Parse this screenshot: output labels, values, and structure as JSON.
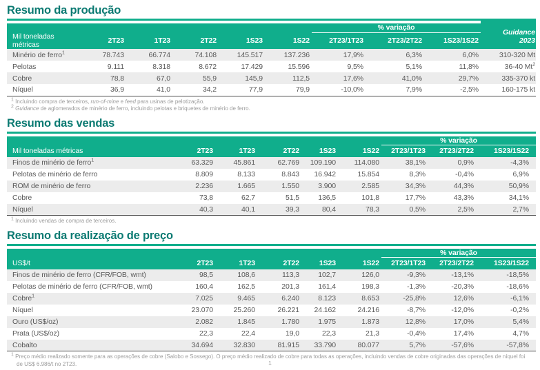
{
  "page": {
    "number": "1"
  },
  "colors": {
    "accent_green": "#10AE8C",
    "title_teal": "#0B7A72",
    "row_stripe": "#ECECEC",
    "body_text": "#595959",
    "footnote_text": "#9C9C9C",
    "header_text": "#FFFFFF"
  },
  "sections": [
    {
      "title": "Resumo da produção",
      "unit_header": "Mil toneladas métricas",
      "period_columns": [
        "2T23",
        "1T23",
        "2T22",
        "1S23",
        "1S22"
      ],
      "variation_group_label": "% variação",
      "variation_columns": [
        "2T23/1T23",
        "2T23/2T22",
        "1S23/1S22"
      ],
      "guidance_column": {
        "line1": "Guidance",
        "line2": "2023"
      },
      "rows": [
        {
          "label": "Minério de ferro",
          "label_sup": "1",
          "periods": [
            "78.743",
            "66.774",
            "74.108",
            "145.517",
            "137.236"
          ],
          "variations": [
            "17,9%",
            "6,3%",
            "6,0%"
          ],
          "guidance": "310-320 Mt",
          "guidance_sup": ""
        },
        {
          "label": "Pelotas",
          "label_sup": "",
          "periods": [
            "9.111",
            "8.318",
            "8.672",
            "17.429",
            "15.596"
          ],
          "variations": [
            "9,5%",
            "5,1%",
            "11,8%"
          ],
          "guidance": "36-40 Mt",
          "guidance_sup": "2"
        },
        {
          "label": "Cobre",
          "label_sup": "",
          "periods": [
            "78,8",
            "67,0",
            "55,9",
            "145,9",
            "112,5"
          ],
          "variations": [
            "17,6%",
            "41,0%",
            "29,7%"
          ],
          "guidance": "335-370 kt",
          "guidance_sup": ""
        },
        {
          "label": "Níquel",
          "label_sup": "",
          "periods": [
            "36,9",
            "41,0",
            "34,2",
            "77,9",
            "79,9"
          ],
          "variations": [
            "-10,0%",
            "7,9%",
            "-2,5%"
          ],
          "guidance": "160-175 kt",
          "guidance_sup": ""
        }
      ],
      "footnotes": [
        {
          "marker": "1",
          "segments": [
            {
              "text": "Incluindo compra de terceiros, ",
              "italic": false
            },
            {
              "text": "run-of-mine",
              "italic": true
            },
            {
              "text": " e ",
              "italic": false
            },
            {
              "text": "feed",
              "italic": true
            },
            {
              "text": " para usinas de pelotização.",
              "italic": false
            }
          ]
        },
        {
          "marker": "2",
          "segments": [
            {
              "text": "Guidance",
              "italic": true
            },
            {
              "text": " de aglomerados de minério de ferro, incluindo pelotas e briquetes de minério de ferro.",
              "italic": false
            }
          ]
        }
      ]
    },
    {
      "title": "Resumo das vendas",
      "unit_header": "Mil toneladas métricas",
      "period_columns": [
        "2T23",
        "1T23",
        "2T22",
        "1S23",
        "1S22"
      ],
      "variation_group_label": "% variação",
      "variation_columns": [
        "2T23/1T23",
        "2T23/2T22",
        "1S23/1S22"
      ],
      "guidance_column": null,
      "rows": [
        {
          "label": "Finos de minério de ferro",
          "label_sup": "1",
          "periods": [
            "63.329",
            "45.861",
            "62.769",
            "109.190",
            "114.080"
          ],
          "variations": [
            "38,1%",
            "0,9%",
            "-4,3%"
          ]
        },
        {
          "label": "Pelotas de minério de ferro",
          "label_sup": "",
          "periods": [
            "8.809",
            "8.133",
            "8.843",
            "16.942",
            "15.854"
          ],
          "variations": [
            "8,3%",
            "-0,4%",
            "6,9%"
          ]
        },
        {
          "label": "ROM de minério de ferro",
          "label_sup": "",
          "periods": [
            "2.236",
            "1.665",
            "1.550",
            "3.900",
            "2.585"
          ],
          "variations": [
            "34,3%",
            "44,3%",
            "50,9%"
          ]
        },
        {
          "label": "Cobre",
          "label_sup": "",
          "periods": [
            "73,8",
            "62,7",
            "51,5",
            "136,5",
            "101,8"
          ],
          "variations": [
            "17,7%",
            "43,3%",
            "34,1%"
          ]
        },
        {
          "label": "Níquel",
          "label_sup": "",
          "periods": [
            "40,3",
            "40,1",
            "39,3",
            "80,4",
            "78,3"
          ],
          "variations": [
            "0,5%",
            "2,5%",
            "2,7%"
          ]
        }
      ],
      "footnotes": [
        {
          "marker": "1",
          "segments": [
            {
              "text": "Incluindo vendas de compra de terceiros.",
              "italic": false
            }
          ]
        }
      ]
    },
    {
      "title": "Resumo da realização de preço",
      "unit_header": "US$/t",
      "period_columns": [
        "2T23",
        "1T23",
        "2T22",
        "1S23",
        "1S22"
      ],
      "variation_group_label": "% variação",
      "variation_columns": [
        "2T23/1T23",
        "2T23/2T22",
        "1S23/1S22"
      ],
      "guidance_column": null,
      "rows": [
        {
          "label": "Finos de minério de ferro (CFR/FOB, wmt)",
          "label_sup": "",
          "periods": [
            "98,5",
            "108,6",
            "113,3",
            "102,7",
            "126,0"
          ],
          "variations": [
            "-9,3%",
            "-13,1%",
            "-18,5%"
          ]
        },
        {
          "label": "Pelotas de minério de ferro (CFR/FOB, wmt)",
          "label_sup": "",
          "periods": [
            "160,4",
            "162,5",
            "201,3",
            "161,4",
            "198,3"
          ],
          "variations": [
            "-1,3%",
            "-20,3%",
            "-18,6%"
          ]
        },
        {
          "label": "Cobre",
          "label_sup": "1",
          "periods": [
            "7.025",
            "9.465",
            "6.240",
            "8.123",
            "8.653"
          ],
          "variations": [
            "-25,8%",
            "12,6%",
            "-6,1%"
          ]
        },
        {
          "label": "Níquel",
          "label_sup": "",
          "periods": [
            "23.070",
            "25.260",
            "26.221",
            "24.162",
            "24.216"
          ],
          "variations": [
            "-8,7%",
            "-12,0%",
            "-0,2%"
          ]
        },
        {
          "label": "Ouro (US$/oz)",
          "label_sup": "",
          "periods": [
            "2.082",
            "1.845",
            "1.780",
            "1.975",
            "1.873"
          ],
          "variations": [
            "12,8%",
            "17,0%",
            "5,4%"
          ]
        },
        {
          "label": "Prata (US$/oz)",
          "label_sup": "",
          "periods": [
            "22,3",
            "22,4",
            "19,0",
            "22,3",
            "21,3"
          ],
          "variations": [
            "-0,4%",
            "17,4%",
            "4,7%"
          ]
        },
        {
          "label": "Cobalto",
          "label_sup": "",
          "periods": [
            "34.694",
            "32.830",
            "81.915",
            "33.790",
            "80.077"
          ],
          "variations": [
            "5,7%",
            "-57,6%",
            "-57,8%"
          ]
        }
      ],
      "footnotes": [
        {
          "marker": "1",
          "segments": [
            {
              "text": "Preço médio realizado somente para as operações de cobre (Salobo e Sossego). O preço médio realizado de cobre para todas as operações, incluindo vendas de cobre originadas das operações de níquel foi de US$ 6.986/t no 2T23.",
              "italic": false
            }
          ]
        }
      ]
    }
  ]
}
